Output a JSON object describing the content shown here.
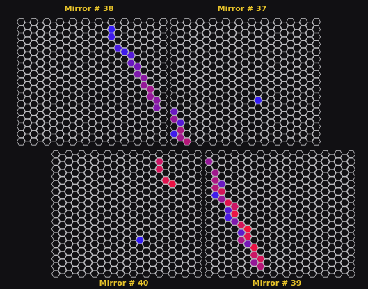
{
  "colors": {
    "background": "#111013",
    "grid_stroke": "#c4c4c8",
    "label": "#e7c32a",
    "pixel_low": "#2a1cff",
    "pixel_high": "#ff1230"
  },
  "mirrors": [
    {
      "id": "mirror-38",
      "label": "Mirror # 38",
      "hits": [
        {
          "row": 1,
          "col": 14,
          "level": 0.05
        },
        {
          "row": 2,
          "col": 14,
          "level": 0.1
        },
        {
          "row": 3,
          "col": 15,
          "level": 0.15
        },
        {
          "row": 4,
          "col": 16,
          "level": 0.1
        },
        {
          "row": 4,
          "col": 17,
          "level": 0.2
        },
        {
          "row": 5,
          "col": 17,
          "level": 0.3
        },
        {
          "row": 6,
          "col": 18,
          "level": 0.35
        },
        {
          "row": 7,
          "col": 18,
          "level": 0.4
        },
        {
          "row": 7,
          "col": 19,
          "level": 0.45
        },
        {
          "row": 8,
          "col": 19,
          "level": 0.5
        },
        {
          "row": 9,
          "col": 20,
          "level": 0.55
        },
        {
          "row": 10,
          "col": 20,
          "level": 0.5
        },
        {
          "row": 10,
          "col": 21,
          "level": 0.45
        },
        {
          "row": 11,
          "col": 21,
          "level": 0.4
        }
      ]
    },
    {
      "id": "mirror-37",
      "label": "Mirror # 37",
      "hits": [
        {
          "row": 12,
          "col": 0,
          "level": 0.3
        },
        {
          "row": 13,
          "col": 0,
          "level": 0.5
        },
        {
          "row": 13,
          "col": 1,
          "level": 0.2
        },
        {
          "row": 14,
          "col": 1,
          "level": 0.6
        },
        {
          "row": 15,
          "col": 0,
          "level": 0.1
        },
        {
          "row": 15,
          "col": 1,
          "level": 0.55
        },
        {
          "row": 16,
          "col": 2,
          "level": 0.65
        },
        {
          "row": 10,
          "col": 13,
          "level": 0.05
        }
      ]
    },
    {
      "id": "mirror-40",
      "label": "Mirror # 40",
      "hits": [
        {
          "row": 1,
          "col": 16,
          "level": 0.75
        },
        {
          "row": 2,
          "col": 16,
          "level": 0.8
        },
        {
          "row": 3,
          "col": 17,
          "level": 0.85
        },
        {
          "row": 4,
          "col": 18,
          "level": 0.9
        },
        {
          "row": 11,
          "col": 13,
          "level": 0.05
        }
      ]
    },
    {
      "id": "mirror-39",
      "label": "Mirror # 39",
      "hits": [
        {
          "row": 1,
          "col": 0,
          "level": 0.5
        },
        {
          "row": 2,
          "col": 1,
          "level": 0.55
        },
        {
          "row": 3,
          "col": 1,
          "level": 0.6
        },
        {
          "row": 4,
          "col": 1,
          "level": 0.65
        },
        {
          "row": 4,
          "col": 2,
          "level": 0.3
        },
        {
          "row": 5,
          "col": 1,
          "level": 0.1
        },
        {
          "row": 5,
          "col": 2,
          "level": 0.8
        },
        {
          "row": 6,
          "col": 2,
          "level": 0.5
        },
        {
          "row": 6,
          "col": 3,
          "level": 0.85
        },
        {
          "row": 7,
          "col": 3,
          "level": 0.2
        },
        {
          "row": 7,
          "col": 4,
          "level": 0.75
        },
        {
          "row": 8,
          "col": 3,
          "level": 0.15
        },
        {
          "row": 8,
          "col": 4,
          "level": 0.9
        },
        {
          "row": 9,
          "col": 4,
          "level": 0.4
        },
        {
          "row": 9,
          "col": 5,
          "level": 0.8
        },
        {
          "row": 10,
          "col": 5,
          "level": 0.25
        },
        {
          "row": 10,
          "col": 6,
          "level": 0.95
        },
        {
          "row": 11,
          "col": 5,
          "level": 0.6
        },
        {
          "row": 11,
          "col": 6,
          "level": 0.85
        },
        {
          "row": 12,
          "col": 6,
          "level": 0.35
        },
        {
          "row": 12,
          "col": 7,
          "level": 0.9
        },
        {
          "row": 13,
          "col": 7,
          "level": 0.75
        },
        {
          "row": 14,
          "col": 7,
          "level": 0.5
        },
        {
          "row": 14,
          "col": 8,
          "level": 0.8
        },
        {
          "row": 15,
          "col": 8,
          "level": 0.65
        }
      ]
    }
  ]
}
